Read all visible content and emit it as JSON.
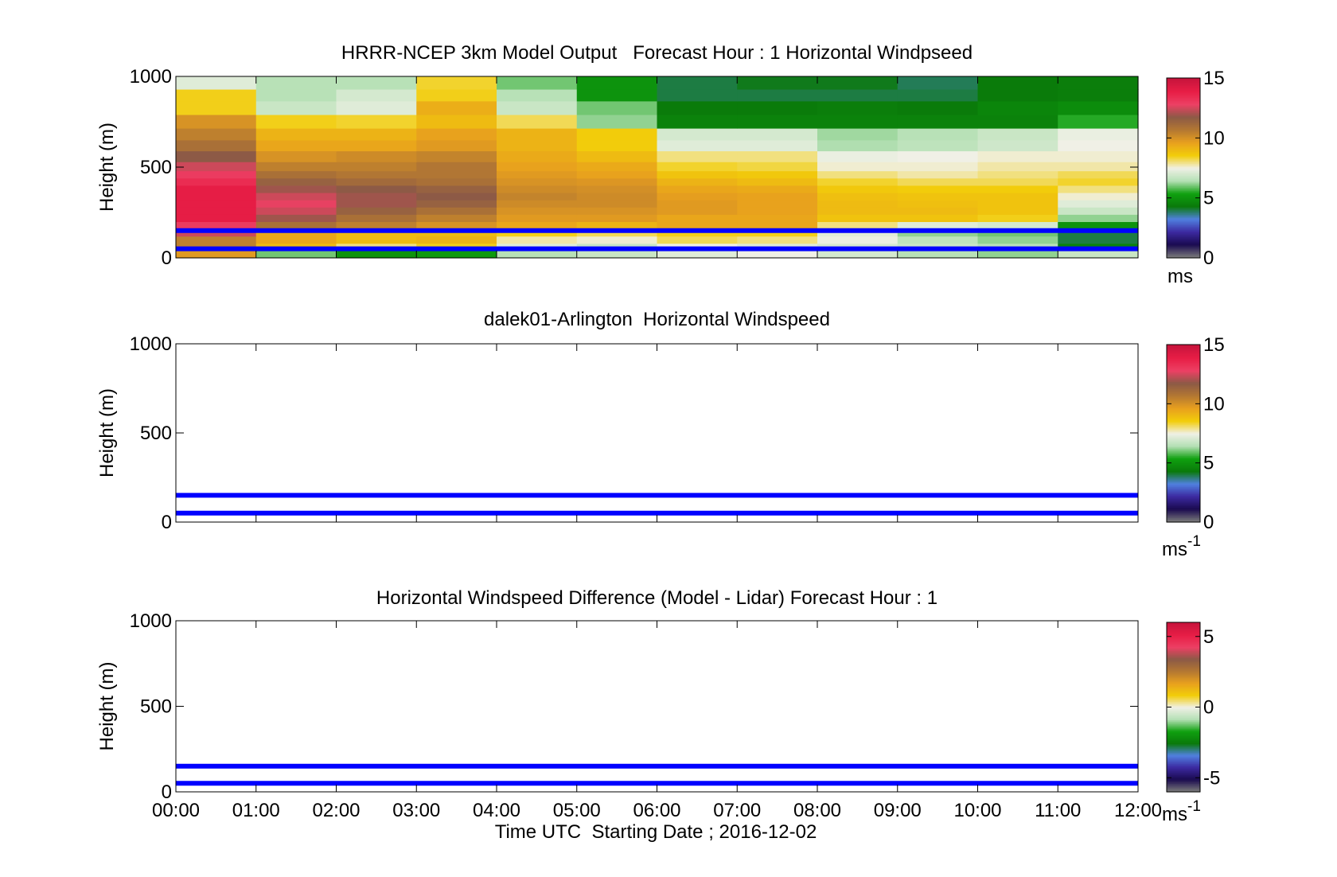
{
  "chart_data": [
    {
      "type": "heatmap",
      "title": "HRRR-NCEP 3km Model Output   Forecast Hour : 1 Horizontal Windpseed",
      "ylabel": "Height (m)",
      "xlabel": "",
      "ylim": [
        0,
        1000
      ],
      "yticks": [
        "0",
        "500",
        "1000"
      ],
      "colorbar": {
        "ticks": [
          "0",
          "5",
          "10",
          "15"
        ],
        "tick_values": [
          0,
          5,
          10,
          15
        ],
        "range": [
          0,
          15
        ],
        "unit": "ms"
      },
      "x_columns": [
        "00:00",
        "01:00",
        "02:00",
        "03:00",
        "04:00",
        "05:00",
        "06:00",
        "07:00",
        "08:00",
        "09:00",
        "10:00",
        "11:00"
      ],
      "y_levels": [
        20,
        60,
        100,
        140,
        180,
        220,
        260,
        300,
        340,
        380,
        420,
        460,
        500,
        560,
        620,
        680,
        750,
        830,
        900,
        960
      ],
      "z": [
        [
          9.8,
          6.0,
          5.0,
          5.2,
          6.5,
          6.8,
          7.2,
          7.5,
          7.0,
          6.5,
          6.2,
          6.8
        ],
        [
          10.5,
          9.0,
          8.0,
          8.5,
          7.2,
          6.8,
          7.5,
          7.2,
          7.0,
          6.8,
          6.5,
          4.5
        ],
        [
          10.5,
          9.5,
          9.0,
          9.2,
          7.8,
          7.6,
          8.2,
          8.0,
          7.4,
          6.6,
          6.2,
          4.0
        ],
        [
          12.5,
          9.5,
          9.0,
          9.0,
          8.5,
          8.2,
          8.5,
          8.5,
          7.2,
          6.2,
          6.0,
          4.0
        ],
        [
          13.0,
          11.0,
          10.5,
          10.0,
          9.5,
          9.2,
          9.5,
          9.5,
          8.0,
          7.2,
          7.0,
          5.0
        ],
        [
          14.0,
          12.0,
          11.0,
          10.5,
          9.8,
          9.8,
          9.5,
          9.5,
          8.8,
          8.8,
          8.5,
          6.2
        ],
        [
          14.0,
          12.5,
          11.5,
          11.0,
          10.0,
          10.0,
          9.8,
          9.6,
          9.0,
          9.0,
          8.8,
          6.8
        ],
        [
          14.0,
          12.8,
          12.0,
          11.5,
          10.2,
          10.2,
          9.8,
          9.6,
          9.0,
          8.9,
          8.8,
          7.2
        ],
        [
          14.0,
          12.5,
          12.0,
          11.8,
          10.4,
          10.2,
          9.7,
          9.6,
          8.9,
          8.8,
          8.8,
          7.6
        ],
        [
          14.0,
          12.0,
          11.8,
          11.5,
          10.2,
          10.1,
          9.5,
          9.4,
          8.7,
          8.6,
          8.6,
          8.0
        ],
        [
          13.5,
          11.5,
          11.2,
          11.0,
          10.0,
          9.9,
          9.2,
          9.0,
          8.4,
          8.2,
          8.2,
          8.4
        ],
        [
          13.0,
          11.0,
          10.8,
          10.8,
          9.8,
          9.6,
          8.8,
          8.7,
          8.0,
          7.8,
          8.0,
          8.2
        ],
        [
          12.5,
          10.5,
          10.5,
          10.8,
          9.6,
          9.4,
          8.4,
          8.3,
          7.6,
          7.6,
          7.8,
          7.8
        ],
        [
          11.8,
          10.0,
          10.2,
          10.4,
          9.4,
          9.0,
          8.0,
          8.0,
          7.4,
          7.5,
          7.6,
          7.6
        ],
        [
          11.0,
          9.5,
          9.5,
          9.8,
          9.2,
          8.6,
          7.2,
          7.2,
          6.4,
          6.6,
          6.9,
          7.5
        ],
        [
          10.5,
          9.2,
          9.2,
          9.6,
          9.2,
          8.6,
          7.0,
          7.0,
          6.3,
          6.5,
          6.8,
          7.4
        ],
        [
          10.0,
          8.5,
          8.4,
          9.0,
          8.2,
          6.2,
          4.5,
          4.5,
          4.5,
          4.5,
          4.5,
          5.5
        ],
        [
          8.5,
          6.8,
          7.2,
          9.3,
          6.8,
          6.0,
          4.3,
          4.3,
          4.4,
          4.3,
          4.6,
          4.8
        ],
        [
          8.5,
          6.5,
          7.0,
          8.5,
          6.5,
          5.0,
          4.0,
          4.0,
          4.0,
          4.0,
          4.3,
          4.4
        ],
        [
          7.2,
          6.5,
          6.5,
          8.4,
          6.0,
          5.0,
          4.0,
          4.2,
          4.2,
          3.9,
          4.3,
          4.4
        ]
      ],
      "lines": [
        {
          "y": 150,
          "color": "#0000ff"
        },
        {
          "y": 50,
          "color": "#0000ff"
        }
      ]
    },
    {
      "type": "heatmap",
      "title": "dalek01-Arlington  Horizontal Windspeed",
      "ylabel": "Height (m)",
      "xlabel": "",
      "ylim": [
        0,
        1000
      ],
      "yticks": [
        "0",
        "500",
        "1000"
      ],
      "colorbar": {
        "ticks": [
          "0",
          "5",
          "10",
          "15"
        ],
        "tick_values": [
          0,
          5,
          10,
          15
        ],
        "range": [
          0,
          15
        ],
        "unit": "ms",
        "unit_sup": "-1"
      },
      "lines": [
        {
          "y": 150,
          "color": "#0000ff"
        },
        {
          "y": 50,
          "color": "#0000ff"
        }
      ]
    },
    {
      "type": "heatmap",
      "title": "Horizontal Windspeed Difference (Model - Lidar) Forecast Hour : 1",
      "ylabel": "Height (m)",
      "xlabel": "Time UTC  Starting Date ; 2016-12-02",
      "ylim": [
        0,
        1000
      ],
      "yticks": [
        "0",
        "500",
        "1000"
      ],
      "xticks": [
        "00:00",
        "01:00",
        "02:00",
        "03:00",
        "04:00",
        "05:00",
        "06:00",
        "07:00",
        "08:00",
        "09:00",
        "10:00",
        "11:00",
        "12:00"
      ],
      "colorbar": {
        "ticks": [
          "-5",
          "0",
          "5"
        ],
        "tick_values": [
          -5,
          0,
          5
        ],
        "range": [
          -6,
          6
        ],
        "unit": "ms",
        "unit_sup": "-1"
      },
      "lines": [
        {
          "y": 150,
          "color": "#0000ff"
        },
        {
          "y": 50,
          "color": "#0000ff"
        }
      ]
    }
  ],
  "colormap": [
    "#7a7a7a",
    "#1a0a50",
    "#3c2aa0",
    "#5080e0",
    "#0a7a0a",
    "#0fa00f",
    "#b4e0b4",
    "#f0f0e6",
    "#f2cd0a",
    "#e8a01e",
    "#b47832",
    "#8c5a46",
    "#ec4064",
    "#e81e46",
    "#c8143c"
  ],
  "line_color": "#0000ff"
}
